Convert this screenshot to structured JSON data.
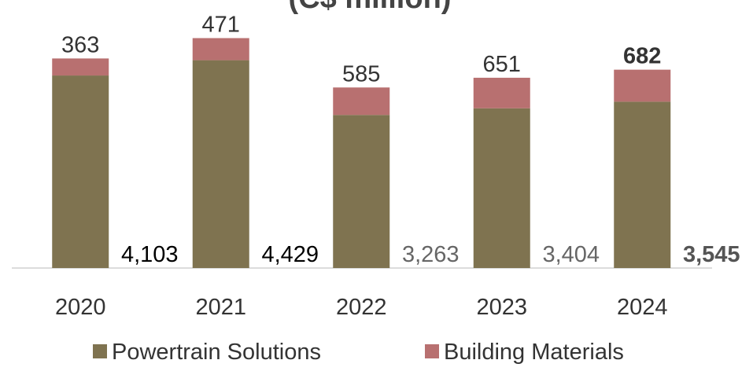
{
  "chart_data": {
    "type": "stacked_bar",
    "title": "(C$ million)",
    "categories": [
      "2020",
      "2021",
      "2022",
      "2023",
      "2024"
    ],
    "series": [
      {
        "name": "Powertrain Solutions",
        "color": "#7f7350",
        "values": [
          4103,
          4429,
          3263,
          3404,
          3545
        ],
        "value_labels": [
          "4,103",
          "4,429",
          "3,263",
          "3,404",
          "3,545"
        ]
      },
      {
        "name": "Building Materials",
        "color": "#b87070",
        "values": [
          363,
          471,
          585,
          651,
          682
        ]
      }
    ],
    "ylim": [
      0,
      5000
    ],
    "legend": "bottom"
  }
}
